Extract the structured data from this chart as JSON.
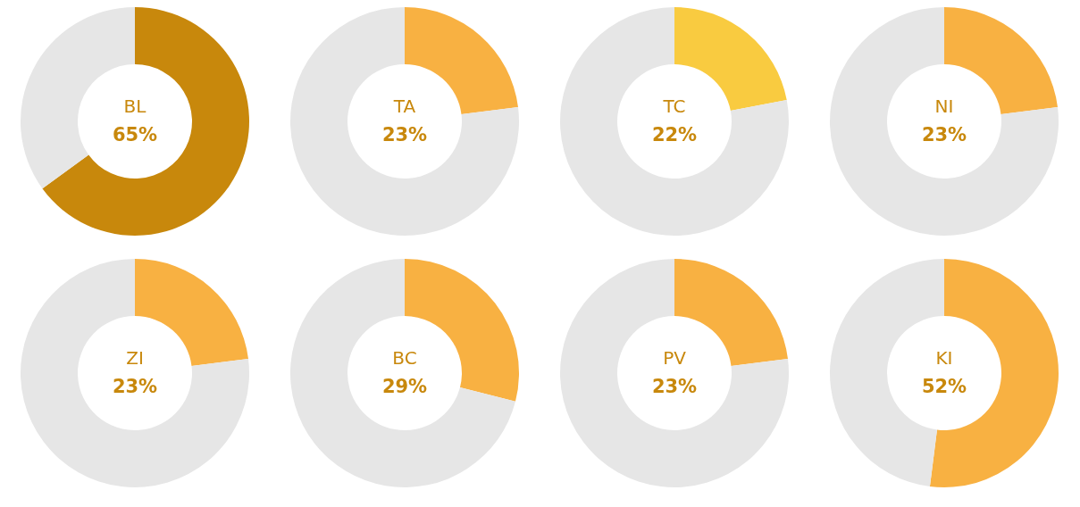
{
  "chart_data": [
    {
      "type": "donut",
      "title": "BL",
      "subtitle": "65%",
      "categories": [
        null,
        null
      ],
      "values": [
        65,
        35
      ],
      "colors": [
        "#c8880c",
        "#e6e6e6"
      ]
    },
    {
      "type": "donut",
      "title": "TA",
      "subtitle": "23%",
      "categories": [
        null,
        null
      ],
      "values": [
        23,
        77
      ],
      "colors": [
        "#f8b142",
        "#e6e6e6"
      ]
    },
    {
      "type": "donut",
      "title": "TC",
      "subtitle": "22%",
      "categories": [
        null,
        null
      ],
      "values": [
        22,
        78
      ],
      "colors": [
        "#f9cb40",
        "#e6e6e6"
      ]
    },
    {
      "type": "donut",
      "title": "NI",
      "subtitle": "23%",
      "categories": [
        null,
        null
      ],
      "values": [
        23,
        77
      ],
      "colors": [
        "#f8b142",
        "#e6e6e6"
      ]
    },
    {
      "type": "donut",
      "title": "ZI",
      "subtitle": "23%",
      "categories": [
        null,
        null
      ],
      "values": [
        23,
        77
      ],
      "colors": [
        "#f8b142",
        "#e6e6e6"
      ]
    },
    {
      "type": "donut",
      "title": "BC",
      "subtitle": "29%",
      "categories": [
        null,
        null
      ],
      "values": [
        29,
        71
      ],
      "colors": [
        "#f8b142",
        "#e6e6e6"
      ]
    },
    {
      "type": "donut",
      "title": "PV",
      "subtitle": "23%",
      "categories": [
        null,
        null
      ],
      "values": [
        23,
        77
      ],
      "colors": [
        "#f8b142",
        "#e6e6e6"
      ]
    },
    {
      "type": "donut",
      "title": "KI",
      "subtitle": "52%",
      "categories": [
        null,
        null
      ],
      "values": [
        52,
        48
      ],
      "colors": [
        "#f8b142",
        "#e6e6e6"
      ]
    }
  ]
}
